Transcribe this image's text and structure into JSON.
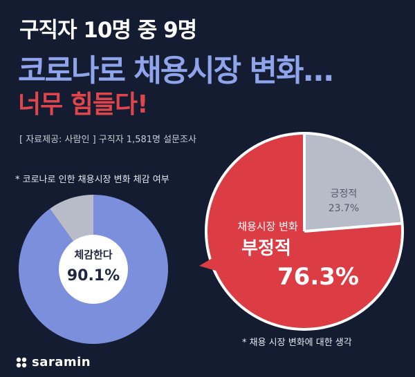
{
  "header": {
    "line1": "구직자 10명 중 9명",
    "line2": "코로나로 채용시장 변화...",
    "line3": "너무 힘들다!",
    "source": "[ 자료제공: 사람인 ] 구직자 1,581명 설문조사"
  },
  "notes": {
    "left": "* 코로나로 인한 채용시장 변화 체감 여부",
    "right": "* 채용 시장 변화에 대한 생각"
  },
  "brand": {
    "name": "saramin"
  },
  "colors": {
    "background": "#141c31",
    "blue": "#7b8fdd",
    "gray": "#b8bcc8",
    "red": "#dc3d44",
    "white": "#ffffff"
  },
  "chart_data": [
    {
      "type": "pie",
      "subtitle": "* 코로나로 인한 채용시장 변화 체감 여부",
      "slices": [
        {
          "label": "체감한다",
          "value": 90.1,
          "display": "90.1%",
          "color": "#7b8fdd"
        },
        {
          "label": "",
          "value": 9.9,
          "display": "",
          "color": "#b8bcc8"
        }
      ]
    },
    {
      "type": "pie",
      "subtitle": "* 채용 시장 변화에 대한 생각",
      "slices": [
        {
          "label": "부정적",
          "sublabel": "채용시장 변화",
          "value": 76.3,
          "display": "76.3%",
          "color": "#dc3d44"
        },
        {
          "label": "긍정적",
          "value": 23.7,
          "display": "23.7%",
          "color": "#b8bcc8"
        }
      ]
    }
  ]
}
